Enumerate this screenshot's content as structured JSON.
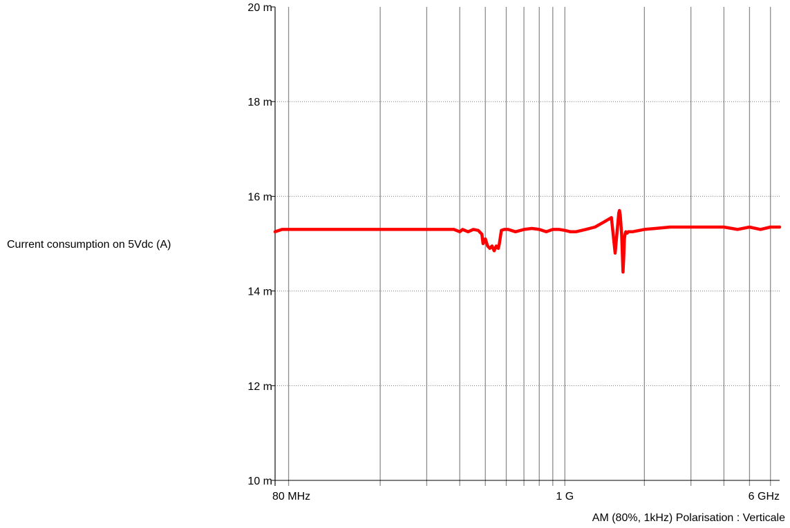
{
  "chart_data": {
    "type": "line",
    "ylabel": "Current consumption on 5Vdc (A)",
    "x_scale": "log",
    "x_unit": "MHz",
    "xlim": [
      80,
      6500
    ],
    "ylim": [
      10,
      20
    ],
    "y_ticks": [
      {
        "value": 10,
        "label": "10 m"
      },
      {
        "value": 12,
        "label": "12 m"
      },
      {
        "value": 14,
        "label": "14 m"
      },
      {
        "value": 16,
        "label": "16 m"
      },
      {
        "value": 18,
        "label": "18 m"
      },
      {
        "value": 20,
        "label": "20 m"
      }
    ],
    "x_tick_labels": [
      {
        "value": 80,
        "label": "80 MHz"
      },
      {
        "value": 1000,
        "label": "1 G"
      },
      {
        "value": 6000,
        "label": "6 GHz"
      }
    ],
    "x_gridlines": [
      80,
      90,
      200,
      300,
      400,
      500,
      600,
      700,
      800,
      900,
      1000,
      2000,
      3000,
      4000,
      5000,
      6000
    ],
    "y_gridlines": [
      12,
      14,
      16,
      18
    ],
    "grid": true,
    "annotation": "AM (80%, 1kHz) Polarisation : Verticale",
    "series": [
      {
        "color": "#ff0000",
        "x": [
          80,
          85,
          120,
          200,
          300,
          380,
          400,
          410,
          430,
          450,
          470,
          485,
          490,
          500,
          510,
          520,
          530,
          540,
          550,
          560,
          565,
          575,
          590,
          610,
          650,
          700,
          750,
          800,
          850,
          900,
          950,
          1000,
          1050,
          1100,
          1200,
          1300,
          1400,
          1500,
          1550,
          1600,
          1610,
          1620,
          1640,
          1660,
          1670,
          1680,
          1690,
          1700,
          1720,
          1740,
          1800,
          2000,
          2200,
          2500,
          3000,
          3500,
          4000,
          4500,
          5000,
          5500,
          6000,
          6500
        ],
        "y": [
          15.25,
          15.3,
          15.3,
          15.3,
          15.3,
          15.3,
          15.25,
          15.3,
          15.25,
          15.3,
          15.28,
          15.2,
          15.0,
          15.1,
          14.95,
          14.9,
          14.95,
          14.85,
          14.95,
          14.9,
          15.0,
          15.28,
          15.3,
          15.3,
          15.25,
          15.3,
          15.32,
          15.3,
          15.25,
          15.3,
          15.3,
          15.28,
          15.25,
          15.25,
          15.3,
          15.35,
          15.45,
          15.55,
          14.8,
          15.65,
          15.7,
          15.6,
          15.2,
          14.4,
          14.7,
          15.1,
          15.2,
          15.25,
          15.22,
          15.25,
          15.25,
          15.3,
          15.32,
          15.35,
          15.35,
          15.35,
          15.35,
          15.3,
          15.35,
          15.3,
          15.35,
          15.35
        ]
      }
    ]
  }
}
